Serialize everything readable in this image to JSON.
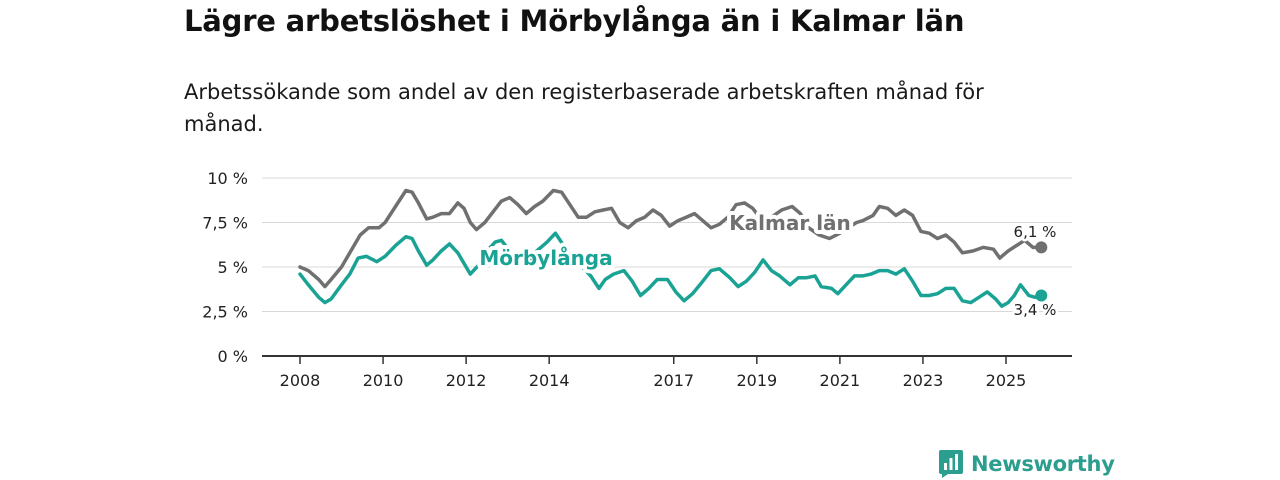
{
  "title": "Lägre arbetslöshet i Mörbylånga än i Kalmar län",
  "subtitle": "Arbetssökande som andel av den registerbaserade arbetskraften månad för månad.",
  "branding": {
    "name": "Newsworthy",
    "color": "#2c9e8f"
  },
  "chart_data": {
    "type": "line",
    "title": "Lägre arbetslöshet i Mörbylånga än i Kalmar län",
    "subtitle": "Arbetssökande som andel av den registerbaserade arbetskraften månad för månad.",
    "xlabel": "",
    "ylabel": "",
    "ylim": [
      0,
      10
    ],
    "xlim": [
      2008.0,
      2025.85
    ],
    "y_ticks": [
      0,
      2.5,
      5,
      7.5,
      10
    ],
    "y_tick_labels": [
      "0 %",
      "2,5 %",
      "5 %",
      "7,5 %",
      "10 %"
    ],
    "x_ticks": [
      2008,
      2010,
      2012,
      2014,
      2017,
      2019,
      2021,
      2023,
      2025
    ],
    "x_tick_labels": [
      "2008",
      "2010",
      "2012",
      "2014",
      "2017",
      "2019",
      "2021",
      "2023",
      "2025"
    ],
    "grid": true,
    "series": [
      {
        "name": "Kalmar län",
        "color": "#707070",
        "end_label": "6,1 %",
        "points": [
          [
            2008.0,
            5.0
          ],
          [
            2008.2,
            4.8
          ],
          [
            2008.45,
            4.3
          ],
          [
            2008.6,
            3.9
          ],
          [
            2008.75,
            4.3
          ],
          [
            2009.0,
            5.0
          ],
          [
            2009.2,
            5.8
          ],
          [
            2009.45,
            6.8
          ],
          [
            2009.65,
            7.2
          ],
          [
            2009.9,
            7.2
          ],
          [
            2010.05,
            7.5
          ],
          [
            2010.3,
            8.4
          ],
          [
            2010.55,
            9.3
          ],
          [
            2010.7,
            9.2
          ],
          [
            2010.85,
            8.6
          ],
          [
            2011.05,
            7.7
          ],
          [
            2011.2,
            7.8
          ],
          [
            2011.4,
            8.0
          ],
          [
            2011.6,
            8.0
          ],
          [
            2011.8,
            8.6
          ],
          [
            2011.95,
            8.3
          ],
          [
            2012.1,
            7.5
          ],
          [
            2012.25,
            7.1
          ],
          [
            2012.45,
            7.5
          ],
          [
            2012.65,
            8.1
          ],
          [
            2012.85,
            8.7
          ],
          [
            2013.05,
            8.9
          ],
          [
            2013.25,
            8.5
          ],
          [
            2013.45,
            8.0
          ],
          [
            2013.65,
            8.4
          ],
          [
            2013.85,
            8.7
          ],
          [
            2014.1,
            9.3
          ],
          [
            2014.3,
            9.2
          ],
          [
            2014.5,
            8.5
          ],
          [
            2014.7,
            7.8
          ],
          [
            2014.9,
            7.8
          ],
          [
            2015.1,
            8.1
          ],
          [
            2015.3,
            8.2
          ],
          [
            2015.5,
            8.3
          ],
          [
            2015.7,
            7.5
          ],
          [
            2015.9,
            7.2
          ],
          [
            2016.1,
            7.6
          ],
          [
            2016.3,
            7.8
          ],
          [
            2016.5,
            8.2
          ],
          [
            2016.7,
            7.9
          ],
          [
            2016.9,
            7.3
          ],
          [
            2017.1,
            7.6
          ],
          [
            2017.3,
            7.8
          ],
          [
            2017.5,
            8.0
          ],
          [
            2017.7,
            7.6
          ],
          [
            2017.9,
            7.2
          ],
          [
            2018.1,
            7.4
          ],
          [
            2018.3,
            7.8
          ],
          [
            2018.5,
            8.5
          ],
          [
            2018.7,
            8.6
          ],
          [
            2018.9,
            8.3
          ],
          [
            2019.1,
            7.7
          ],
          [
            2019.35,
            7.8
          ],
          [
            2019.6,
            8.2
          ],
          [
            2019.85,
            8.4
          ],
          [
            2020.05,
            8.0
          ]
        ]
      },
      {
        "name": "Mörbylånga",
        "color": "#1aa394",
        "end_label": "3,4 %",
        "points": [
          [
            2008.0,
            4.6
          ],
          [
            2008.2,
            4.0
          ],
          [
            2008.45,
            3.3
          ],
          [
            2008.6,
            3.0
          ],
          [
            2008.75,
            3.2
          ],
          [
            2009.0,
            4.0
          ],
          [
            2009.2,
            4.6
          ],
          [
            2009.4,
            5.5
          ],
          [
            2009.6,
            5.6
          ],
          [
            2009.85,
            5.3
          ],
          [
            2010.05,
            5.6
          ],
          [
            2010.3,
            6.2
          ],
          [
            2010.55,
            6.7
          ],
          [
            2010.7,
            6.6
          ],
          [
            2010.85,
            5.9
          ],
          [
            2011.05,
            5.1
          ],
          [
            2011.2,
            5.4
          ],
          [
            2011.4,
            5.9
          ],
          [
            2011.6,
            6.3
          ],
          [
            2011.8,
            5.8
          ],
          [
            2011.95,
            5.2
          ],
          [
            2012.1,
            4.6
          ],
          [
            2012.3,
            5.1
          ],
          [
            2012.5,
            5.9
          ],
          [
            2012.7,
            6.4
          ],
          [
            2012.85,
            6.5
          ],
          [
            2013.05,
            5.9
          ],
          [
            2013.25,
            5.3
          ],
          [
            2013.5,
            5.0
          ],
          [
            2013.7,
            5.9
          ],
          [
            2013.95,
            6.4
          ],
          [
            2014.15,
            6.9
          ],
          [
            2014.35,
            6.2
          ],
          [
            2014.6,
            5.5
          ]
        ]
      }
    ]
  }
}
